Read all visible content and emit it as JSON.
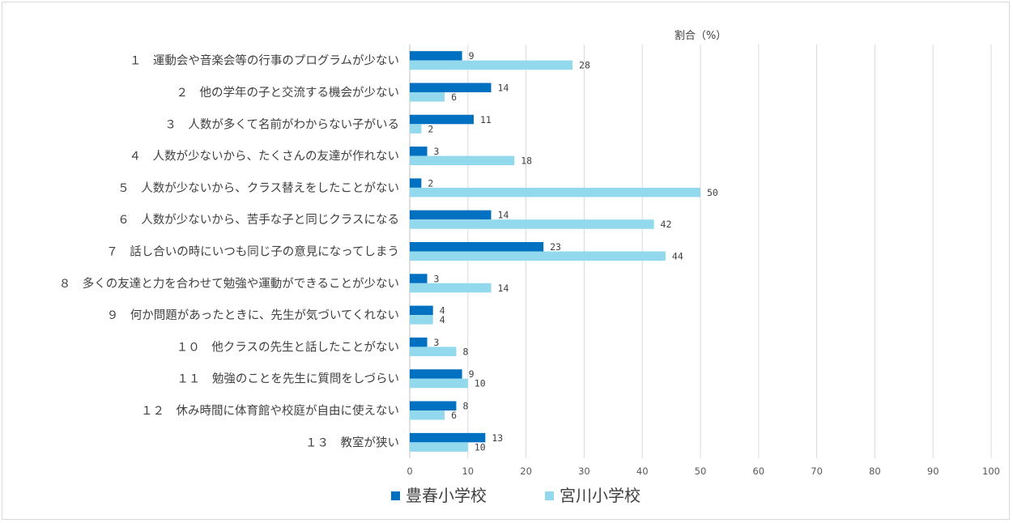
{
  "chart_data": {
    "type": "bar",
    "orientation": "horizontal",
    "title": "",
    "xlabel": "割合（%）",
    "ylabel": "",
    "xlim": [
      0,
      100
    ],
    "xticks": [
      0,
      10,
      20,
      30,
      40,
      50,
      60,
      70,
      80,
      90,
      100
    ],
    "xtick_labels": [
      "0",
      "10",
      "20",
      "30",
      "40",
      "50",
      "60",
      "70",
      "80",
      "90",
      "100"
    ],
    "grid": "vertical",
    "legend_position": "bottom",
    "categories": [
      "１　運動会や音楽会等の行事のプログラムが少ない",
      "２　他の学年の子と交流する機会が少ない",
      "３　人数が多くて名前がわからない子がいる",
      "４　人数が少ないから、たくさんの友達が作れない",
      "５　人数が少ないから、クラス替えをしたことがない",
      "６　人数が少ないから、苦手な子と同じクラスになる",
      "７　話し合いの時にいつも同じ子の意見になってしまう",
      "８　多くの友達と力を合わせて勉強や運動ができることが少ない",
      "９　何か問題があったときに、先生が気づいてくれない",
      "１０　他クラスの先生と話したことがない",
      "１１　勉強のことを先生に質問をしづらい",
      "１２　休み時間に体育館や校庭が自由に使えない",
      "１３　教室が狭い"
    ],
    "series": [
      {
        "name": "豊春小学校",
        "color": "#0070c0",
        "values": [
          9,
          14,
          11,
          3,
          2,
          14,
          23,
          3,
          4,
          3,
          9,
          8,
          13
        ]
      },
      {
        "name": "宮川小学校",
        "color": "#92d9ee",
        "values": [
          28,
          6,
          2,
          18,
          50,
          42,
          44,
          14,
          4,
          8,
          10,
          6,
          10
        ]
      }
    ]
  }
}
